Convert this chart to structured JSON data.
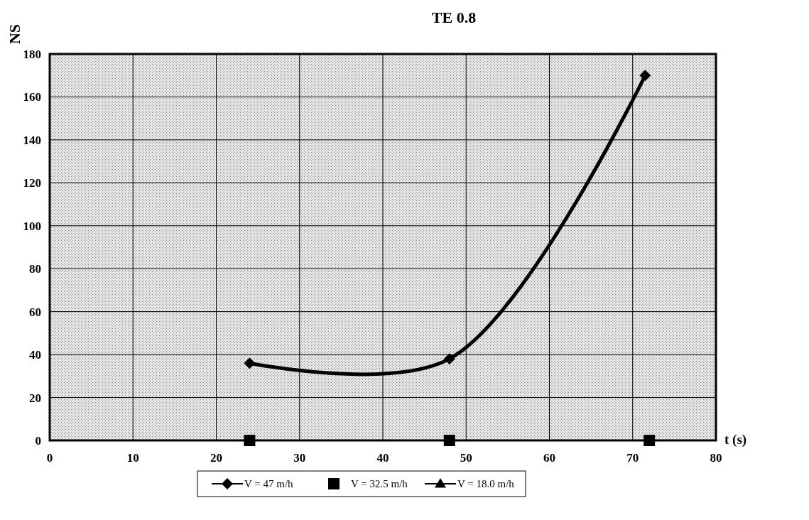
{
  "chart_data": {
    "type": "line",
    "title": "TE 0.8",
    "xlabel": "t (s)",
    "ylabel": "NS",
    "xlim": [
      0,
      80
    ],
    "xticks": [
      0,
      10,
      20,
      30,
      40,
      50,
      60,
      70,
      80
    ],
    "ylim": [
      0,
      180
    ],
    "yticks": [
      0,
      20,
      40,
      60,
      80,
      100,
      120,
      140,
      160,
      180
    ],
    "grid": true,
    "legend": "bottom",
    "x": [
      24,
      48,
      71.5
    ],
    "series": [
      {
        "name": "V = 47 m/h",
        "color": "#000000",
        "values": [
          36,
          38,
          170
        ],
        "marker": "diamond"
      },
      {
        "name": "V = 32.5 m/h",
        "color": "#000000",
        "x": [
          24,
          48,
          72
        ],
        "values": [
          0,
          0,
          0
        ],
        "marker": "square",
        "type": "scatter"
      },
      {
        "name": "V = 18.0 m/h",
        "color": "#000000",
        "values": [
          null,
          null,
          null
        ],
        "marker": "triangle"
      }
    ]
  }
}
